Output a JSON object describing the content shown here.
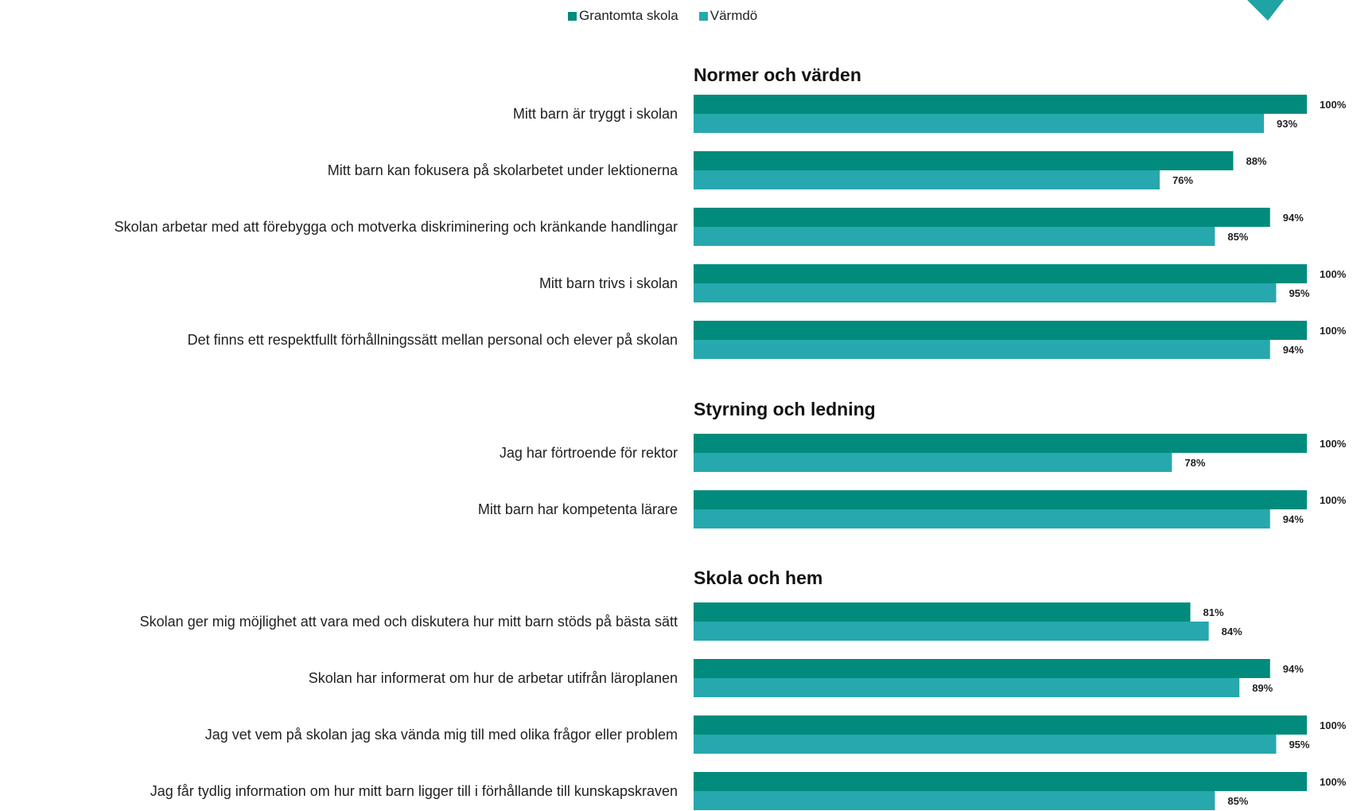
{
  "chart_data": {
    "type": "bar",
    "orientation": "horizontal",
    "unit": "%",
    "xlim": [
      0,
      100
    ],
    "grid": false,
    "legend_placement": "top-center",
    "colors": {
      "Grantomta skola": "#008b7c",
      "Värmdö": "#26a8ae"
    },
    "legend": [
      "Grantomta skola",
      "Värmdö"
    ],
    "groups": [
      {
        "title": "Normer och värden",
        "categories": [
          "Mitt barn är tryggt i skolan",
          "Mitt barn kan fokusera på skolarbetet under lektionerna",
          "Skolan arbetar med att förebygga och motverka diskriminering och kränkande handlingar",
          "Mitt barn trivs i skolan",
          "Det finns ett respektfullt förhållningssätt mellan personal och elever på skolan"
        ],
        "series": [
          {
            "name": "Grantomta skola",
            "values": [
              100,
              88,
              94,
              100,
              100
            ],
            "labels": [
              "100%",
              "88%",
              "94%",
              "100%",
              "100%"
            ]
          },
          {
            "name": "Värmdö",
            "values": [
              93,
              76,
              85,
              95,
              94
            ],
            "labels": [
              "93%",
              "76%",
              "85%",
              "95%",
              "94%"
            ]
          }
        ]
      },
      {
        "title": "Styrning och ledning",
        "categories": [
          "Jag har förtroende för rektor",
          "Mitt barn har kompetenta lärare"
        ],
        "series": [
          {
            "name": "Grantomta skola",
            "values": [
              100,
              100
            ],
            "labels": [
              "100%",
              "100%"
            ]
          },
          {
            "name": "Värmdö",
            "values": [
              78,
              94
            ],
            "labels": [
              "78%",
              "94%"
            ]
          }
        ]
      },
      {
        "title": "Skola och hem",
        "categories": [
          "Skolan ger mig möjlighet att vara med och diskutera hur mitt barn stöds på bästa sätt",
          "Skolan har informerat om hur de arbetar utifrån läroplanen",
          "Jag vet vem på skolan jag ska vända mig till med olika frågor eller problem",
          "Jag får tydlig information om hur mitt barn ligger till i förhållande till kunskapskraven"
        ],
        "series": [
          {
            "name": "Grantomta skola",
            "values": [
              81,
              94,
              100,
              100
            ],
            "labels": [
              "81%",
              "94%",
              "100%",
              "100%"
            ]
          },
          {
            "name": "Värmdö",
            "values": [
              84,
              89,
              95,
              85
            ],
            "labels": [
              "84%",
              "89%",
              "95%",
              "85%"
            ]
          }
        ]
      }
    ]
  }
}
